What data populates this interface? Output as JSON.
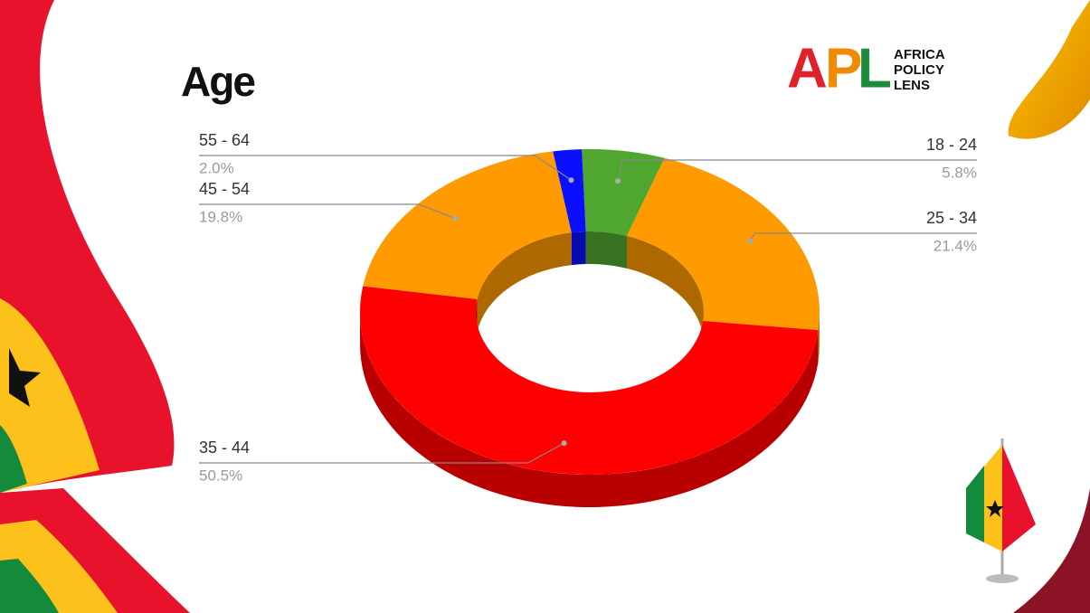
{
  "chart_data": {
    "type": "pie",
    "title": "Age",
    "donut": true,
    "categories": [
      "18 - 24",
      "25 - 34",
      "35 - 44",
      "45 - 54",
      "55 - 64"
    ],
    "values": [
      5.8,
      21.4,
      50.5,
      19.8,
      2.0
    ],
    "value_labels": [
      "5.8%",
      "21.4%",
      "50.5%",
      "19.8%",
      "2.0%"
    ],
    "colors": [
      "#4fa72f",
      "#ff9a00",
      "#ff0000",
      "#ff9a00",
      "#0a10ff"
    ]
  },
  "logo": {
    "letters": [
      "A",
      "P",
      "L"
    ],
    "name": [
      "AFRICA",
      "POLICY",
      "LENS"
    ]
  }
}
